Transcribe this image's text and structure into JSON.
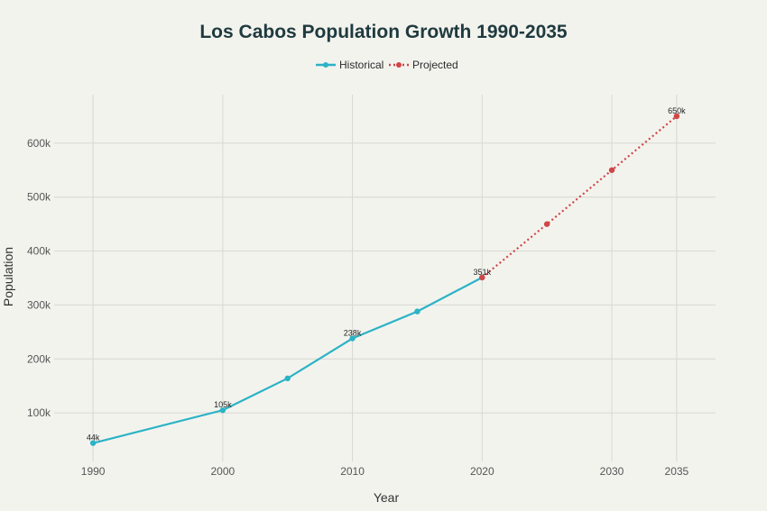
{
  "chart_data": {
    "type": "line",
    "title": "Los Cabos Population Growth 1990-2035",
    "xlabel": "Year",
    "ylabel": "Population",
    "xlim": [
      1987,
      2038
    ],
    "ylim": [
      10000,
      690000
    ],
    "x_ticks": [
      1990,
      2000,
      2010,
      2020,
      2030,
      2035
    ],
    "y_ticks": [
      100000,
      200000,
      300000,
      400000,
      500000,
      600000
    ],
    "y_tick_labels": [
      "100k",
      "200k",
      "300k",
      "400k",
      "500k",
      "600k"
    ],
    "grid": true,
    "legend_position": "top-center",
    "series": [
      {
        "name": "Historical",
        "color": "#2bb3c6",
        "style": "solid",
        "x": [
          1990,
          2000,
          2005,
          2010,
          2015,
          2020
        ],
        "y": [
          44000,
          105000,
          164000,
          238000,
          288000,
          351000
        ]
      },
      {
        "name": "Projected",
        "color": "#d04545",
        "style": "dotted",
        "x": [
          2020,
          2025,
          2030,
          2035
        ],
        "y": [
          351000,
          450000,
          550000,
          650000
        ]
      }
    ],
    "annotations": [
      {
        "x": 1990,
        "y": 44000,
        "text": "44k"
      },
      {
        "x": 2000,
        "y": 105000,
        "text": "105k"
      },
      {
        "x": 2010,
        "y": 238000,
        "text": "238k"
      },
      {
        "x": 2020,
        "y": 351000,
        "text": "351k"
      },
      {
        "x": 2035,
        "y": 650000,
        "text": "650k"
      }
    ]
  }
}
